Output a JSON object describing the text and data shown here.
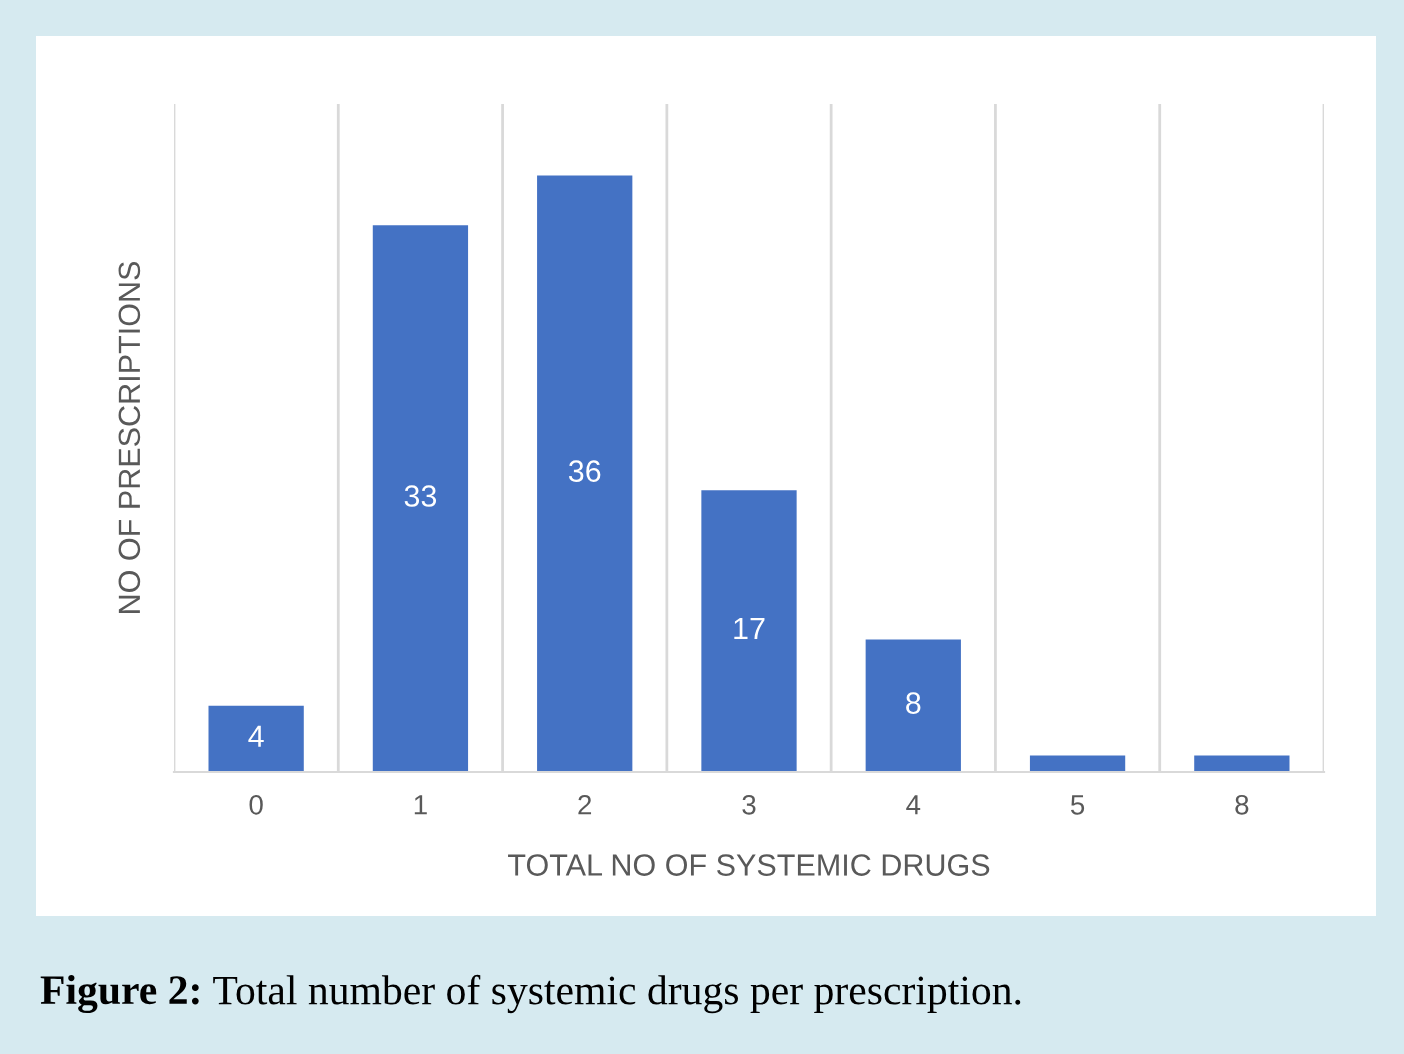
{
  "chart_data": {
    "type": "bar",
    "xlabel": "TOTAL NO OF SYSTEMIC DRUGS",
    "ylabel": "NO OF PRESCRIPTIONS",
    "categories": [
      "0",
      "1",
      "2",
      "3",
      "4",
      "5",
      "8"
    ],
    "values": [
      4,
      33,
      36,
      17,
      8,
      1,
      1
    ],
    "value_labels": [
      "4",
      "33",
      "36",
      "17",
      "8",
      null,
      null
    ],
    "color": "#4472c4",
    "grid": "x",
    "tick_labels": "x",
    "annotations": [
      "Figure 2: Total number of systemic drugs per prescription."
    ]
  }
}
